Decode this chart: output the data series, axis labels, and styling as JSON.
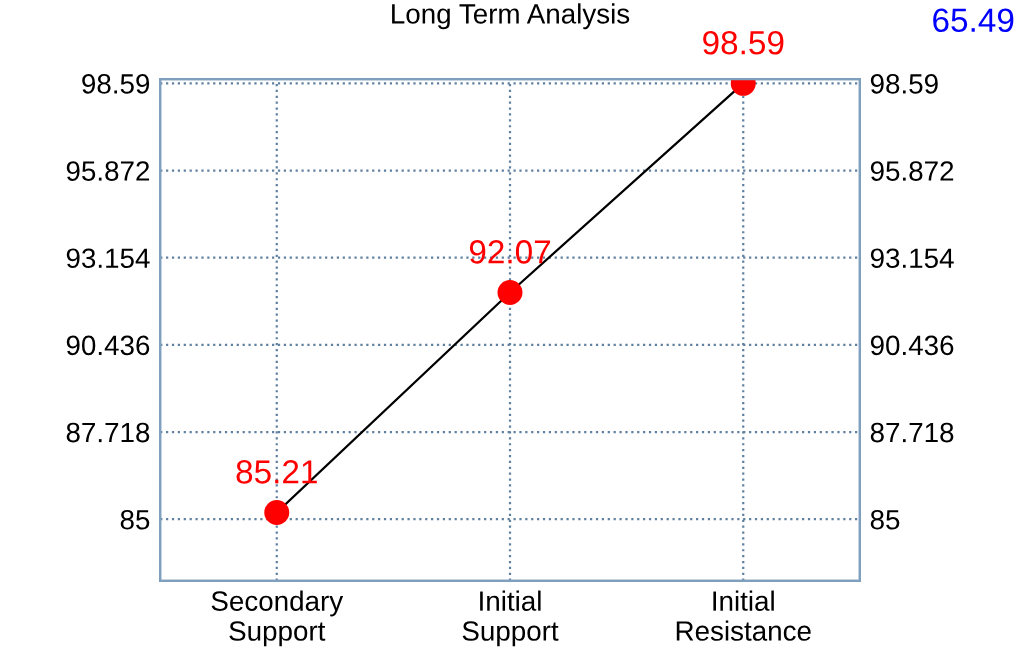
{
  "chart_data": {
    "type": "line",
    "title": "Long Term Analysis",
    "categories": [
      "Secondary\nSupport",
      "Initial\nSupport",
      "Initial\nResistance"
    ],
    "series": [
      {
        "color": "#000000",
        "values": [
          85.21,
          92.07,
          98.59
        ]
      }
    ],
    "marker": "circle",
    "data_labels": true,
    "ylim": [
      83.08,
      98.72
    ],
    "yticks": [
      85,
      87.718,
      90.436,
      93.154,
      95.872,
      98.59
    ],
    "y2lim": [
      83.08,
      98.72
    ],
    "y2ticks": [
      85,
      87.718,
      90.436,
      93.154,
      95.872,
      98.59
    ],
    "grid": true,
    "annotations": [
      "65.49"
    ]
  }
}
